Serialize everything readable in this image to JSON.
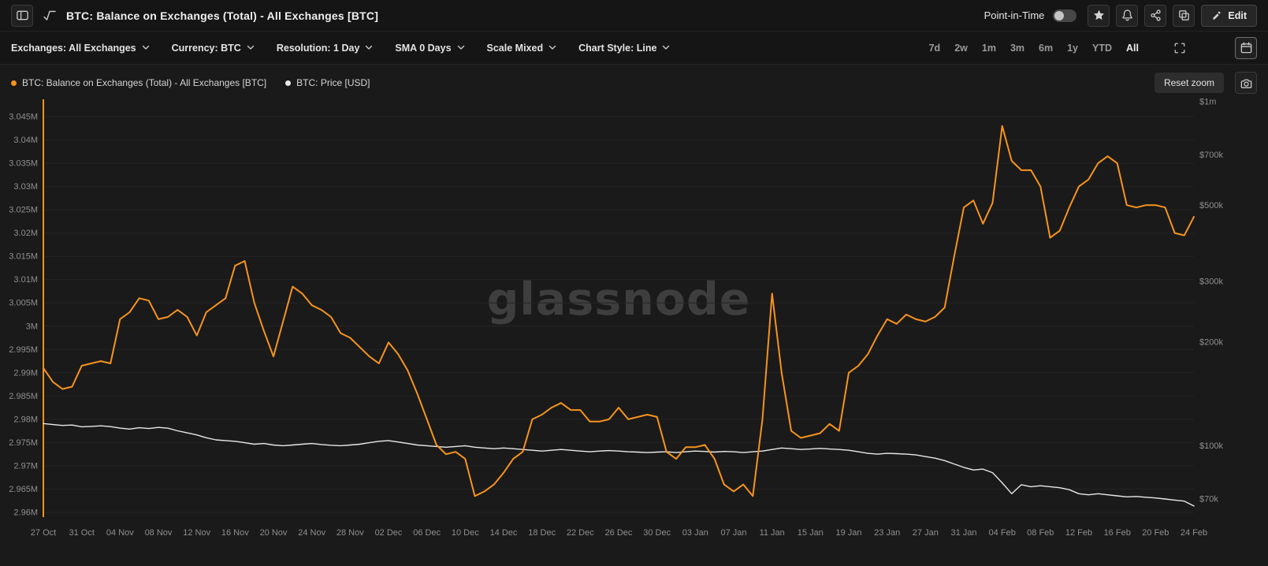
{
  "header": {
    "title": "BTC: Balance on Exchanges (Total) - All Exchanges [BTC]",
    "point_in_time": {
      "label": "Point-in-Time",
      "enabled": false
    },
    "edit_button": "Edit"
  },
  "toolbar": {
    "filters": [
      {
        "id": "exchanges",
        "label": "Exchanges: All Exchanges"
      },
      {
        "id": "currency",
        "label": "Currency: BTC"
      },
      {
        "id": "resolution",
        "label": "Resolution: 1 Day"
      },
      {
        "id": "sma",
        "label": "SMA 0 Days"
      },
      {
        "id": "scale",
        "label": "Scale Mixed"
      },
      {
        "id": "chart_style",
        "label": "Chart Style: Line"
      }
    ],
    "range_buttons": [
      "7d",
      "2w",
      "1m",
      "3m",
      "6m",
      "1y",
      "YTD",
      "All"
    ],
    "active_range": "All"
  },
  "legend": {
    "reset_zoom": "Reset zoom"
  },
  "chart_data": {
    "type": "line",
    "watermark": "glassnode",
    "x_label_every": 4,
    "x_labels": [
      "27 Oct",
      "31 Oct",
      "04 Nov",
      "08 Nov",
      "12 Nov",
      "16 Nov",
      "20 Nov",
      "24 Nov",
      "28 Nov",
      "02 Dec",
      "06 Dec",
      "10 Dec",
      "14 Dec",
      "18 Dec",
      "22 Dec",
      "26 Dec",
      "30 Dec",
      "03 Jan",
      "07 Jan",
      "11 Jan",
      "15 Jan",
      "19 Jan",
      "23 Jan",
      "27 Jan",
      "31 Jan",
      "04 Feb",
      "08 Feb",
      "12 Feb",
      "16 Feb",
      "20 Feb",
      "24 Feb"
    ],
    "left_axis": {
      "unit": "BTC (millions)",
      "scale": "linear",
      "tick_labels": [
        "3.045M",
        "3.04M",
        "3.035M",
        "3.03M",
        "3.025M",
        "3.02M",
        "3.015M",
        "3.01M",
        "3.005M",
        "3M",
        "2.995M",
        "2.99M",
        "2.985M",
        "2.98M",
        "2.975M",
        "2.97M",
        "2.965M",
        "2.96M"
      ],
      "tick_values": [
        3.045,
        3.04,
        3.035,
        3.03,
        3.025,
        3.02,
        3.015,
        3.01,
        3.005,
        3.0,
        2.995,
        2.99,
        2.985,
        2.98,
        2.975,
        2.97,
        2.965,
        2.96
      ]
    },
    "right_axis": {
      "unit": "USD",
      "scale": "log",
      "tick_labels": [
        "$1m",
        "$700k",
        "$500k",
        "$300k",
        "$200k",
        "$100k",
        "$70k"
      ],
      "tick_values": [
        1000000,
        700000,
        500000,
        300000,
        200000,
        100000,
        70000
      ]
    },
    "series": [
      {
        "name": "BTC: Balance on Exchanges (Total) - All Exchanges [BTC]",
        "color": "#f7941d",
        "axis": "left",
        "unit": "M BTC",
        "values": [
          2.991,
          2.988,
          2.9865,
          2.987,
          2.9915,
          2.992,
          2.9925,
          2.992,
          3.0015,
          3.003,
          3.006,
          3.0055,
          3.0015,
          3.002,
          3.0035,
          3.002,
          2.998,
          3.003,
          3.0045,
          3.006,
          3.013,
          3.014,
          3.005,
          2.999,
          2.9935,
          3.001,
          3.0085,
          3.007,
          3.0045,
          3.0035,
          3.002,
          2.9985,
          2.9975,
          2.9955,
          2.9935,
          2.992,
          2.9965,
          2.994,
          2.9905,
          2.9855,
          2.98,
          2.9745,
          2.9725,
          2.973,
          2.9715,
          2.9635,
          2.9645,
          2.966,
          2.9685,
          2.9715,
          2.973,
          2.98,
          2.981,
          2.9825,
          2.9835,
          2.982,
          2.982,
          2.9795,
          2.9795,
          2.98,
          2.9825,
          2.98,
          2.9805,
          2.981,
          2.9805,
          2.973,
          2.9715,
          2.974,
          2.974,
          2.9745,
          2.9715,
          2.966,
          2.9645,
          2.966,
          2.9635,
          2.98,
          3.007,
          2.99,
          2.9775,
          2.976,
          2.9765,
          2.977,
          2.979,
          2.9775,
          2.99,
          2.9915,
          2.994,
          2.998,
          3.0015,
          3.0005,
          3.0025,
          3.0015,
          3.001,
          3.002,
          3.004,
          3.015,
          3.0255,
          3.027,
          3.022,
          3.0265,
          3.043,
          3.0355,
          3.0335,
          3.0335,
          3.03,
          3.019,
          3.0205,
          3.0255,
          3.03,
          3.0315,
          3.035,
          3.0365,
          3.035,
          3.026,
          3.0255,
          3.026,
          3.026,
          3.0255,
          3.02,
          3.0195,
          3.0235
        ]
      },
      {
        "name": "BTC: Price [USD]",
        "color": "#e8e8e8",
        "axis": "right",
        "unit": "USD",
        "values": [
          116000,
          115200,
          114500,
          114800,
          113500,
          113800,
          114200,
          113600,
          112500,
          111800,
          112800,
          112200,
          113000,
          112400,
          110500,
          109000,
          107500,
          105500,
          104000,
          103500,
          103000,
          102000,
          101000,
          101500,
          100500,
          100000,
          100500,
          101000,
          101500,
          100800,
          100300,
          100000,
          100500,
          101000,
          102000,
          103000,
          103500,
          102500,
          101500,
          100500,
          100000,
          99500,
          99000,
          99500,
          100000,
          99000,
          98500,
          98000,
          98500,
          98000,
          97500,
          97000,
          96500,
          97000,
          97500,
          97000,
          96500,
          96000,
          96500,
          96800,
          96500,
          96000,
          95800,
          95500,
          95800,
          96000,
          95500,
          96000,
          96500,
          96200,
          95800,
          96200,
          96000,
          95500,
          96000,
          96500,
          97500,
          98500,
          98000,
          97500,
          97800,
          98200,
          97800,
          97500,
          97000,
          96000,
          95000,
          94500,
          95000,
          94800,
          94500,
          94000,
          93000,
          92000,
          90500,
          88500,
          86500,
          85000,
          85500,
          83500,
          78000,
          72500,
          77000,
          76000,
          76500,
          76000,
          75500,
          74500,
          72500,
          72000,
          72500,
          72000,
          71500,
          71000,
          71200,
          70800,
          70500,
          70000,
          69500,
          69000,
          66800
        ]
      }
    ]
  }
}
